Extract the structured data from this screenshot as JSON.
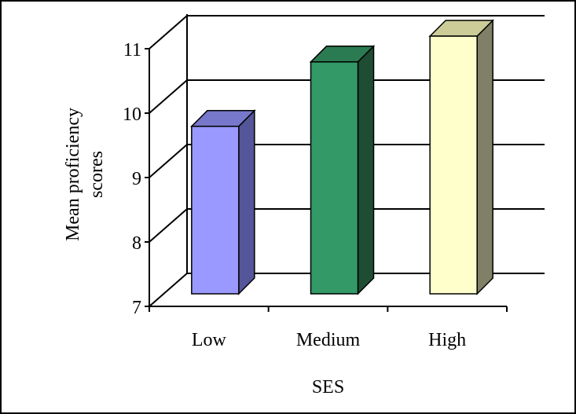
{
  "chart_data": {
    "type": "bar",
    "categories": [
      "Low",
      "Medium",
      "High"
    ],
    "values": [
      9.6,
      10.6,
      11.0
    ],
    "title": "",
    "xlabel": "SES",
    "ylabel_lines": [
      "Mean proficiency",
      "scores"
    ],
    "ylim": [
      7,
      11
    ],
    "yticks": [
      7,
      8,
      9,
      10,
      11
    ],
    "grid": true,
    "legend": "none",
    "colors": {
      "face": [
        "#9999ff",
        "#339966",
        "#ffffcc"
      ],
      "top": [
        "#7777cc",
        "#2a7a52",
        "#cccc99"
      ],
      "side": [
        "#555599",
        "#1e4d33",
        "#808066"
      ]
    }
  }
}
